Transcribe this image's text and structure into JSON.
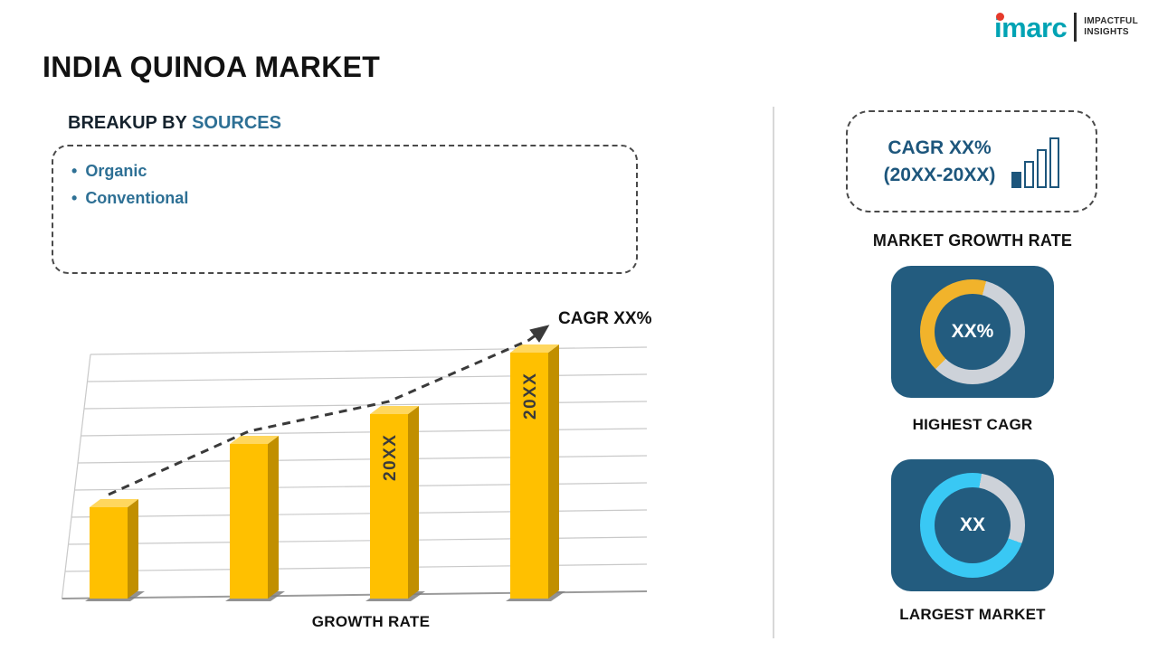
{
  "logo": {
    "brand": "imarc",
    "tagline_line1": "IMPACTFUL",
    "tagline_line2": "INSIGHTS"
  },
  "title": "INDIA QUINOA MARKET",
  "breakup": {
    "heading_prefix": "BREAKUP BY",
    "heading_highlight": "SOURCES",
    "items": [
      "Organic",
      "Conventional"
    ]
  },
  "chart_data": {
    "type": "bar",
    "title": "",
    "xlabel": "GROWTH RATE",
    "ylabel": "",
    "categories": [
      "",
      "",
      "",
      ""
    ],
    "values": [
      37,
      63,
      75,
      100
    ],
    "bar_labels": [
      "",
      "",
      "20XX",
      "20XX"
    ],
    "annotation": "CAGR XX%",
    "trend": "dashed ascending arrow",
    "grid": true,
    "ylim": [
      0,
      100
    ],
    "bar_color": "#FFC000",
    "side_color": "#C18F00",
    "top_color": "#FFD75E",
    "shadow_color": "#7F7F7F",
    "trend_color": "#3A3A3A",
    "label_color": "#3B3B3B"
  },
  "sidebar": {
    "cagr_box": {
      "line1": "CAGR XX%",
      "line2": "(20XX-20XX)"
    },
    "market_growth_label": "MARKET GROWTH RATE",
    "highest_cagr": {
      "value": "XX%",
      "label": "HIGHEST CAGR",
      "ring_base": "#CDD2D9",
      "ring_accent": "#F1B32B",
      "accent_from": 225,
      "accent_span": 150
    },
    "largest_market": {
      "value": "XX",
      "label": "LARGEST MARKET",
      "ring_base": "#39C8F4",
      "ring_accent": "#CDD2D9",
      "accent_from": 10,
      "accent_span": 100
    },
    "card_bg": "#235C7F"
  },
  "colors": {
    "accent_blue": "#2E7095",
    "navy": "#1D567C",
    "card_bg": "#235C7F",
    "divider": "#D8D8D8"
  }
}
